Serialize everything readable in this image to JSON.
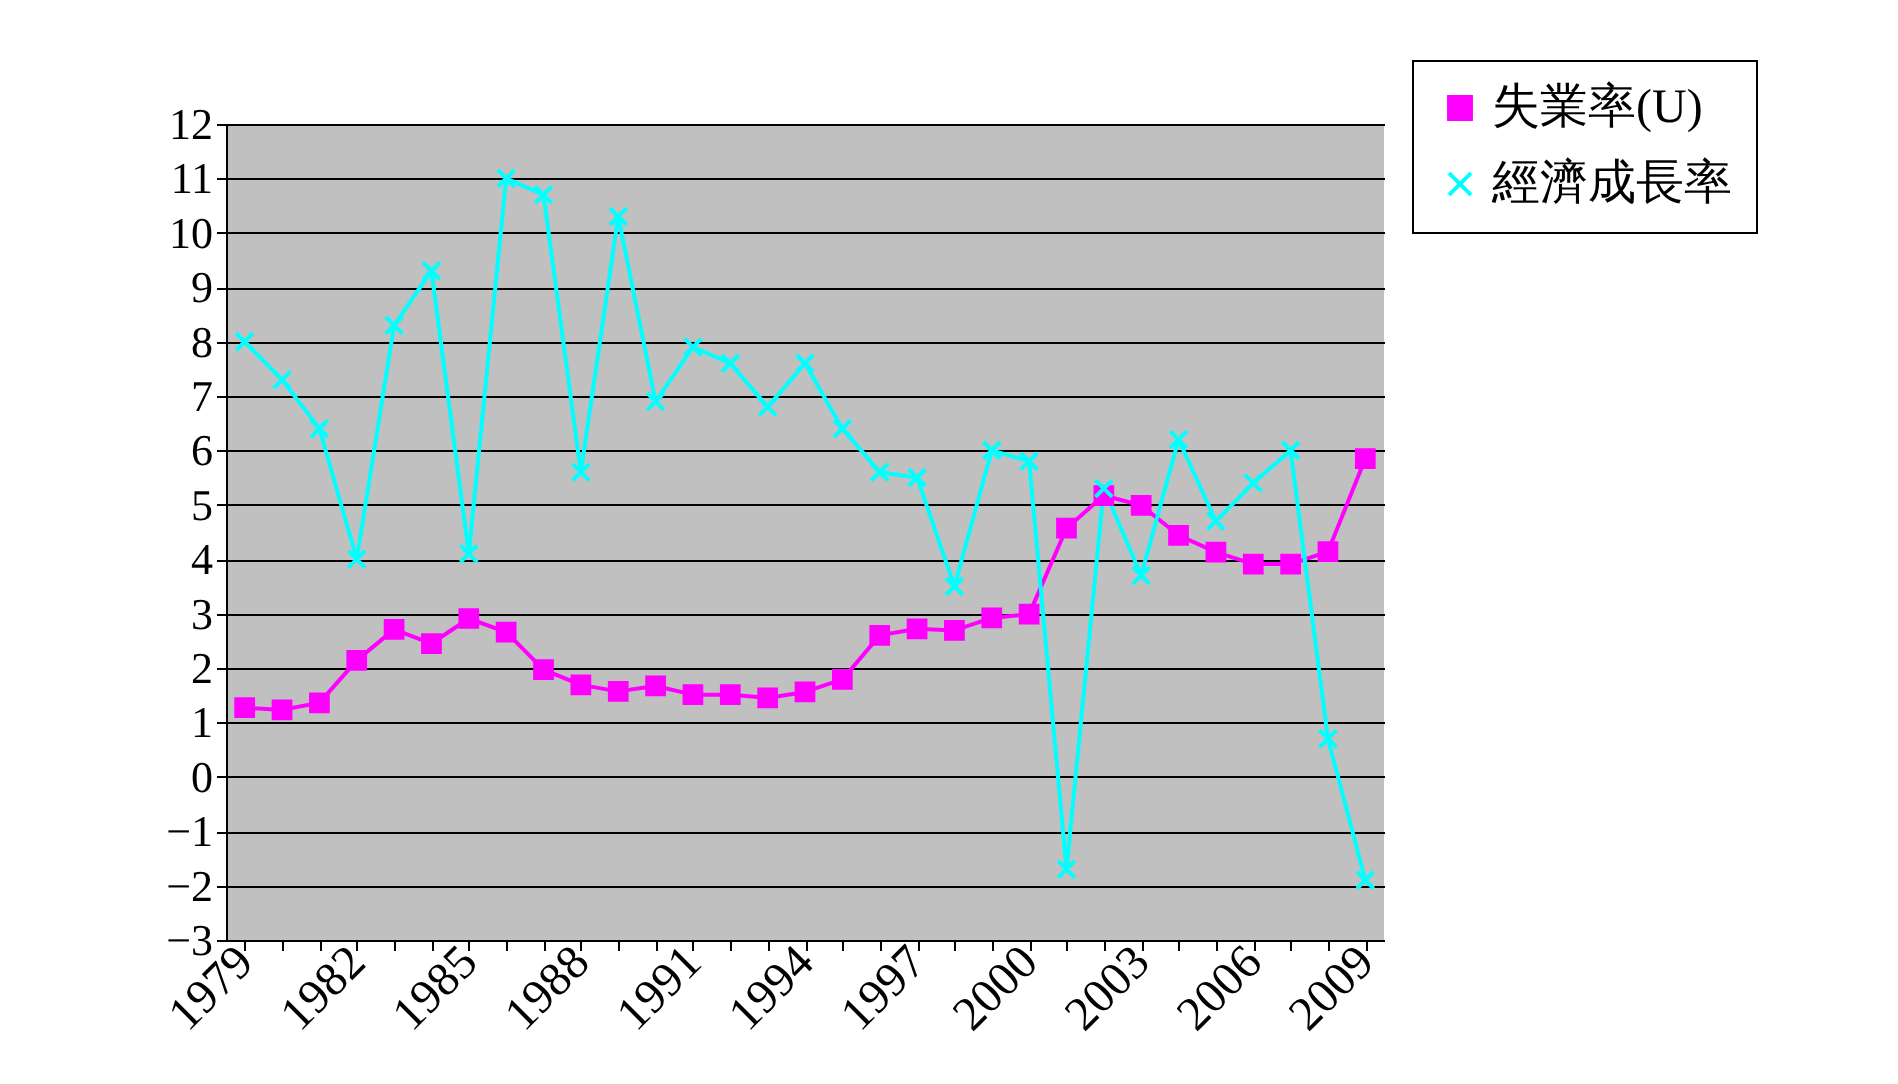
{
  "chart_data": {
    "type": "line",
    "categories": [
      "1979",
      null,
      null,
      "1982",
      null,
      null,
      "1985",
      null,
      null,
      "1988",
      null,
      null,
      "1991",
      null,
      null,
      "1994",
      null,
      null,
      "1997",
      null,
      null,
      "2000",
      null,
      null,
      "2003",
      null,
      null,
      "2006",
      null,
      null,
      "2009"
    ],
    "series": [
      {
        "name": "失業率(U)",
        "color": "#ff00ff",
        "marker": "square",
        "values": [
          1.27,
          1.23,
          1.36,
          2.14,
          2.71,
          2.45,
          2.91,
          2.66,
          1.97,
          1.69,
          1.57,
          1.67,
          1.51,
          1.51,
          1.45,
          1.56,
          1.79,
          2.6,
          2.72,
          2.69,
          2.92,
          2.99,
          4.57,
          5.17,
          4.99,
          4.44,
          4.13,
          3.91,
          3.91,
          4.14,
          5.85
        ]
      },
      {
        "name": "經濟成長率",
        "color": "#00ffff",
        "marker": "cross",
        "values": [
          8.0,
          7.3,
          6.4,
          4.0,
          8.3,
          9.3,
          4.1,
          11.0,
          10.7,
          5.6,
          10.3,
          6.9,
          7.9,
          7.6,
          6.8,
          7.6,
          6.4,
          5.6,
          5.5,
          3.5,
          6.0,
          5.8,
          -1.7,
          5.3,
          3.7,
          6.2,
          4.7,
          5.4,
          6.0,
          0.7,
          -1.9
        ]
      }
    ],
    "ylim": [
      -3,
      12
    ],
    "yticks": [
      -3,
      -2,
      -1,
      0,
      1,
      2,
      3,
      4,
      5,
      6,
      7,
      8,
      9,
      10,
      11,
      12
    ],
    "grid": "y",
    "legend": "top right"
  }
}
